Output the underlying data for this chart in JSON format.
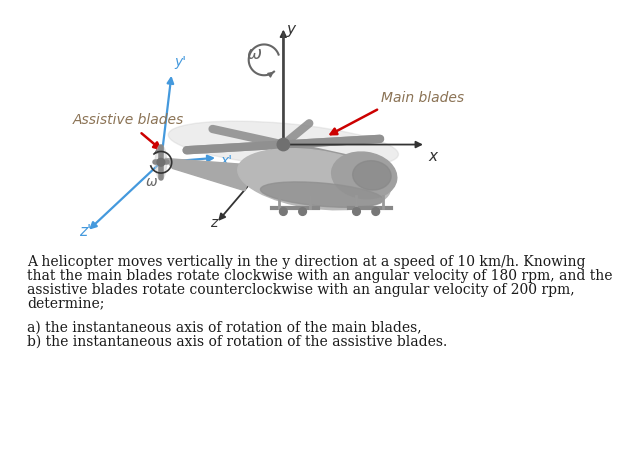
{
  "bg_color": "#ffffff",
  "main_blades_label": "Main blades",
  "assistive_blades_label": "Assistive blades",
  "paragraph_line1": "A helicopter moves vertically in the y direction at a speed of 10 km/h. Knowing",
  "paragraph_line2": "that the main blades rotate clockwise with an angular velocity of 180 rpm, and the",
  "paragraph_line3": "assistive blades rotate counterclockwise with an angular velocity of 200 rpm,",
  "paragraph_line4": "determine;",
  "part_a_text": "a) the instantaneous axis of rotation of the main blades,",
  "part_b_text": "b) the instantaneous axis of rotation of the assistive blades.",
  "label_color": "#8B7355",
  "text_color": "#1a1a1a",
  "arrow_red": "#CC0000",
  "axis_blue": "#4499DD",
  "axis_dark": "#333333",
  "omega_color": "#666666",
  "heli_body_color": "#b0b0b0",
  "heli_dark": "#888888",
  "heli_light": "#d8d8d8",
  "rotor_disc_color": "#cccccc",
  "tail_rotor_disc": "#cccccc"
}
